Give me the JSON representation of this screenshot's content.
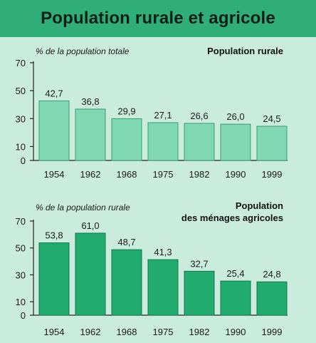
{
  "title": "Population rurale et agricole",
  "colors": {
    "bar1": "#7fd7b3",
    "bar2": "#21ab6e",
    "title_bg": "#2fae7a",
    "panel_bg": "#c9ecdc"
  },
  "chart_data": [
    {
      "type": "bar",
      "title": "Population rurale",
      "ylabel": "% de la population totale",
      "categories": [
        "1954",
        "1962",
        "1968",
        "1975",
        "1982",
        "1990",
        "1999"
      ],
      "values": [
        42.7,
        36.8,
        29.9,
        27.1,
        26.6,
        26.0,
        24.5
      ],
      "value_labels": [
        "42,7",
        "36,8",
        "29,9",
        "27,1",
        "26,6",
        "26,0",
        "24,5"
      ],
      "y_ticks": [
        "70",
        "50",
        "30",
        "10",
        "0"
      ],
      "ylim": [
        0,
        70
      ]
    },
    {
      "type": "bar",
      "title_lines": [
        "Population",
        "des ménages agricoles"
      ],
      "ylabel": "% de la population rurale",
      "categories": [
        "1954",
        "1962",
        "1968",
        "1975",
        "1982",
        "1990",
        "1999"
      ],
      "values": [
        53.8,
        61.0,
        48.7,
        41.3,
        32.7,
        25.4,
        24.8
      ],
      "value_labels": [
        "53,8",
        "61,0",
        "48,7",
        "41,3",
        "32,7",
        "25,4",
        "24,8"
      ],
      "y_ticks": [
        "70",
        "50",
        "30",
        "10",
        "0"
      ],
      "ylim": [
        0,
        70
      ]
    }
  ]
}
